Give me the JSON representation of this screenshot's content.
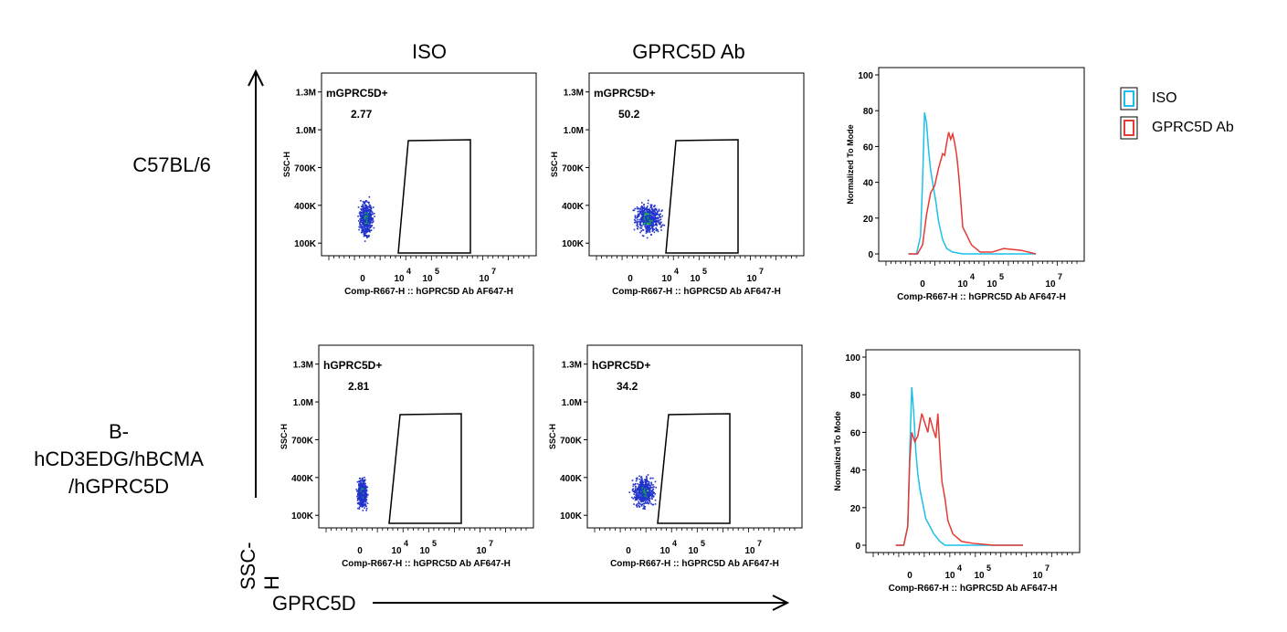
{
  "colors": {
    "iso": "#1cc0ea",
    "gprc": "#e53935",
    "dots": "#2233cc",
    "dense": "#11aa44"
  },
  "columns": {
    "iso": "ISO",
    "ab": "GPRC5D Ab"
  },
  "rows": {
    "r1": "C57BL/6",
    "r2_l1": "B-",
    "r2_l2": "hCD3EDG/hBCMA",
    "r2_l3": "/hGPRC5D"
  },
  "axes": {
    "y_big": "SSC-H",
    "x_big": "GPRC5D"
  },
  "legend": {
    "iso": "ISO",
    "ab": "GPRC5D Ab"
  },
  "chart_data": [
    {
      "type": "scatter",
      "panel": "row1-iso",
      "gate_label": "mGPRC5D+",
      "gate_value": "2.77",
      "ylabel": "SSC-H",
      "xlabel": "Comp-R667-H :: hGPRC5D Ab AF647-H",
      "yticks": [
        "1.3M",
        "1.0M",
        "700K",
        "400K",
        "100K"
      ],
      "xticks": [
        "0",
        "10",
        "10",
        "10"
      ],
      "xtick_sup": [
        "",
        "4",
        "5",
        "7"
      ],
      "population": {
        "x_center": 0.3,
        "x_spread": 0.9,
        "y_center": 300000,
        "y_spread": 120000
      }
    },
    {
      "type": "scatter",
      "panel": "row1-ab",
      "gate_label": "mGPRC5D+",
      "gate_value": "50.2",
      "ylabel": "SSC-H",
      "xlabel": "Comp-R667-H :: hGPRC5D Ab AF647-H",
      "yticks": [
        "1.3M",
        "1.0M",
        "700K",
        "400K",
        "100K"
      ],
      "xticks": [
        "0",
        "10",
        "10",
        "10"
      ],
      "xtick_sup": [
        "",
        "4",
        "5",
        "7"
      ],
      "population": {
        "x_center": 1.9,
        "x_spread": 1.9,
        "y_center": 300000,
        "y_spread": 110000
      }
    },
    {
      "type": "area",
      "panel": "row1-hist",
      "ylabel": "Normalized To Mode",
      "xlabel": "Comp-R667-H :: hGPRC5D Ab AF647-H",
      "yticks": [
        "100",
        "80",
        "60",
        "40",
        "20",
        "0"
      ],
      "xticks": [
        "0",
        "10",
        "10",
        "10"
      ],
      "xtick_sup": [
        "",
        "4",
        "5",
        "7"
      ],
      "series": [
        {
          "name": "ISO",
          "x": [
            -1.4,
            -0.6,
            -0.2,
            0,
            0.2,
            0.4,
            0.6,
            0.8,
            1,
            1.3,
            1.6,
            2,
            2.4,
            3,
            4,
            5,
            6.5
          ],
          "y": [
            0,
            0,
            10,
            40,
            79,
            73,
            58,
            47,
            40,
            30,
            18,
            8,
            3,
            1,
            0,
            0,
            0
          ]
        },
        {
          "name": "GPRC5D Ab",
          "x": [
            -1.4,
            -0.5,
            0,
            0.4,
            0.8,
            1.2,
            1.6,
            2,
            2.2,
            2.4,
            2.6,
            2.8,
            3,
            3.2,
            3.4,
            3.6,
            3.8,
            4,
            4.3,
            4.6,
            5,
            5.4,
            6,
            6.5
          ],
          "y": [
            0,
            0,
            5,
            22,
            34,
            38,
            48,
            56,
            55,
            62,
            68,
            64,
            67,
            62,
            55,
            44,
            30,
            15,
            5,
            1,
            1,
            3,
            2,
            0
          ]
        }
      ]
    },
    {
      "type": "scatter",
      "panel": "row2-iso",
      "gate_label": "hGPRC5D+",
      "gate_value": "2.81",
      "ylabel": "SSC-H",
      "xlabel": "Comp-R667-H :: hGPRC5D Ab AF647-H",
      "yticks": [
        "1.3M",
        "1.0M",
        "700K",
        "400K",
        "100K"
      ],
      "xticks": [
        "0",
        "10",
        "10",
        "10"
      ],
      "xtick_sup": [
        "",
        "4",
        "5",
        "7"
      ],
      "population": {
        "x_center": 0.2,
        "x_spread": 0.7,
        "y_center": 280000,
        "y_spread": 100000
      }
    },
    {
      "type": "scatter",
      "panel": "row2-ab",
      "gate_label": "hGPRC5D+",
      "gate_value": "34.2",
      "ylabel": "SSC-H",
      "xlabel": "Comp-R667-H :: hGPRC5D Ab AF647-H",
      "yticks": [
        "1.3M",
        "1.0M",
        "700K",
        "400K",
        "100K"
      ],
      "xticks": [
        "0",
        "10",
        "10",
        "10"
      ],
      "xtick_sup": [
        "",
        "4",
        "5",
        "7"
      ],
      "population": {
        "x_center": 1.6,
        "x_spread": 1.5,
        "y_center": 290000,
        "y_spread": 100000
      }
    },
    {
      "type": "area",
      "panel": "row2-hist",
      "ylabel": "Normalized To Mode",
      "xlabel": "Comp-R667-H :: hGPRC5D Ab AF647-H",
      "yticks": [
        "100",
        "80",
        "60",
        "40",
        "20",
        "0"
      ],
      "xticks": [
        "0",
        "10",
        "10",
        "10"
      ],
      "xtick_sup": [
        "",
        "4",
        "5",
        "7"
      ],
      "series": [
        {
          "name": "ISO",
          "x": [
            -1.4,
            -0.6,
            -0.2,
            0,
            0.2,
            0.4,
            0.6,
            0.8,
            1,
            1.3,
            1.6,
            2,
            2.4,
            3,
            3.5,
            4.5,
            6.5
          ],
          "y": [
            0,
            0,
            10,
            50,
            84,
            70,
            50,
            38,
            30,
            22,
            14,
            10,
            6,
            2,
            0,
            0,
            0
          ]
        },
        {
          "name": "GPRC5D Ab",
          "x": [
            -1.4,
            -0.6,
            -0.2,
            0,
            0.2,
            0.5,
            0.8,
            1,
            1.2,
            1.5,
            1.8,
            2,
            2.3,
            2.6,
            2.8,
            3,
            3.2,
            3.5,
            3.8,
            4.1,
            4.4,
            4.8,
            5.5,
            6.5
          ],
          "y": [
            0,
            0,
            10,
            45,
            60,
            55,
            58,
            64,
            70,
            65,
            60,
            68,
            62,
            57,
            70,
            50,
            34,
            25,
            13,
            6,
            2,
            1,
            0,
            0
          ]
        }
      ]
    }
  ]
}
